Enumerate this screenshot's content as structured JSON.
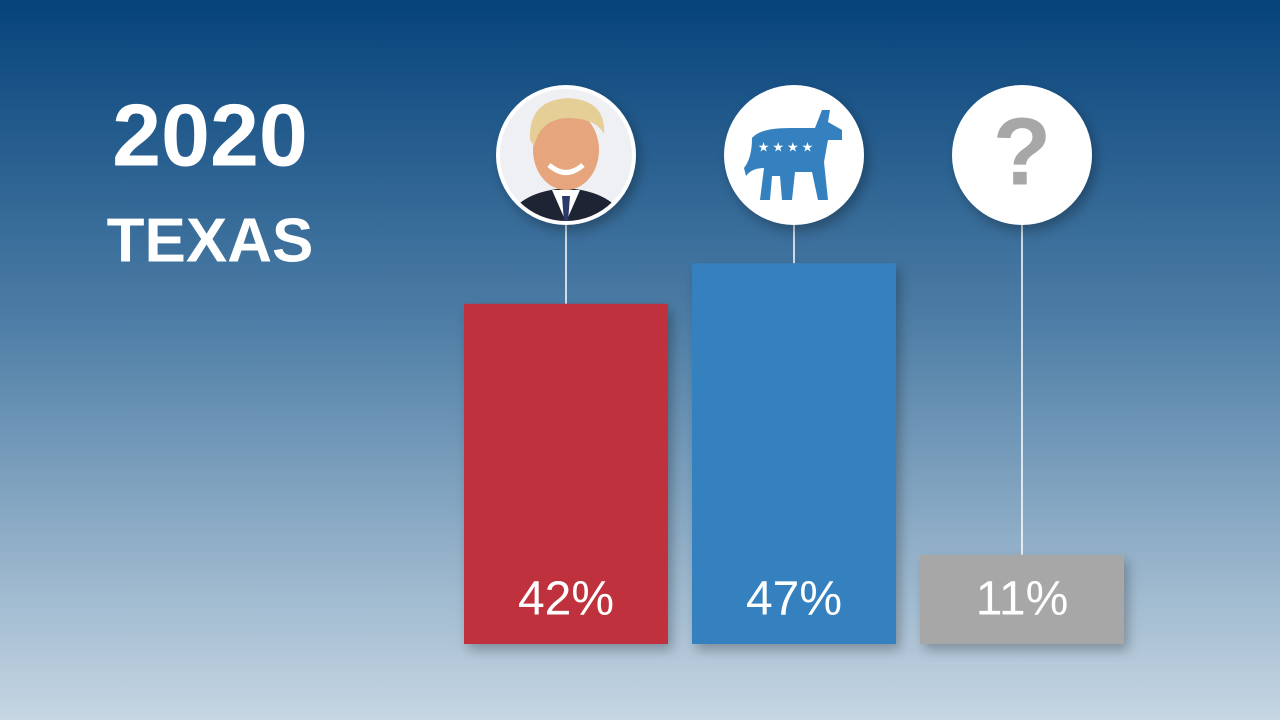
{
  "chart_data": {
    "type": "bar",
    "title": "2020",
    "subtitle": "TEXAS",
    "categories": [
      null,
      null,
      "?"
    ],
    "values": [
      42,
      47,
      11
    ],
    "value_labels": [
      "42%",
      "47%",
      "11%"
    ],
    "colors": [
      "#bf303c",
      "#3581bf",
      "#a7a7a7"
    ]
  }
}
